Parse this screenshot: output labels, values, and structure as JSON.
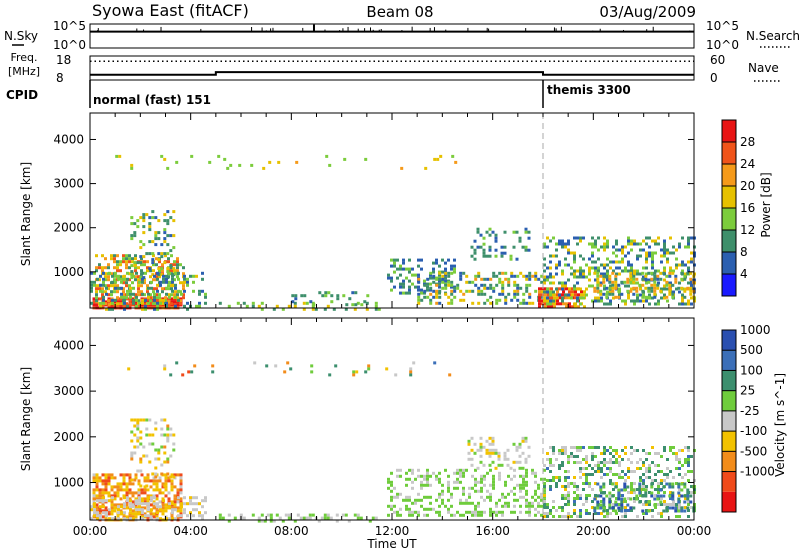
{
  "header": {
    "station": "Syowa East (fitACF)",
    "beam": "Beam 08",
    "date": "03/Aug/2009"
  },
  "noise_panel": {
    "left_label": "N.Sky",
    "right_label": "N.Search",
    "left_ticks": [
      "10^5",
      "10^0"
    ],
    "right_ticks": [
      "10^5",
      "10^0"
    ]
  },
  "freq_panel": {
    "left_label_1": "Freq.",
    "left_label_2": "[MHz]",
    "left_ticks": [
      "18",
      "8"
    ],
    "right_label": "Nave",
    "right_ticks": [
      "60",
      "0"
    ]
  },
  "cpid_panel": {
    "label": "CPID",
    "segments": [
      {
        "name": "normal (fast) 151",
        "start_hr": 0
      },
      {
        "name": "themis 3300",
        "start_hr": 18
      }
    ]
  },
  "power_panel": {
    "ylabel": "Slant Range [km]",
    "yticks": [
      "4000",
      "3000",
      "2000",
      "1000"
    ],
    "colorbar_label": "Power [dB]",
    "colorbar_ticks": [
      "28",
      "24",
      "20",
      "16",
      "12",
      "8",
      "4"
    ],
    "colors": [
      "#1a1aff",
      "#2b5fb0",
      "#3e8f6b",
      "#7ccc3c",
      "#e6c100",
      "#f59a1a",
      "#f0541a",
      "#e81414"
    ]
  },
  "velocity_panel": {
    "ylabel": "Slant Range [km]",
    "yticks": [
      "4000",
      "3000",
      "2000",
      "1000"
    ],
    "colorbar_label": "Velocity [m s^-1]",
    "colorbar_ticks": [
      "1000",
      "500",
      "100",
      "25",
      "-25",
      "-100",
      "-500",
      "-1000"
    ],
    "colors": [
      "#2a4fb0",
      "#3b6fb8",
      "#3c8f6e",
      "#6fcc3c",
      "#c8c8c8",
      "#f2c200",
      "#f28c1a",
      "#f04a1a",
      "#e81414"
    ]
  },
  "time_axis": {
    "label": "Time UT",
    "ticks": [
      "00:00",
      "04:00",
      "08:00",
      "12:00",
      "16:00",
      "20:00",
      "00:00"
    ]
  },
  "chart_data": {
    "type": "heatmap",
    "title": "Syowa East (fitACF) Beam 08 03/Aug/2009",
    "xlabel": "Time UT",
    "ylabel": "Slant Range [km]",
    "xlim_hours": [
      0,
      24
    ],
    "ylim_km": [
      180,
      4600
    ],
    "series": [
      {
        "name": "Power [dB]",
        "clim": [
          0,
          30
        ],
        "regions": [
          {
            "t": [
              0.1,
              3.6
            ],
            "r": [
              180,
              420
            ],
            "v": [
              22,
              30
            ],
            "d": 0.9
          },
          {
            "t": [
              0.2,
              3.7
            ],
            "r": [
              300,
              1400
            ],
            "v": [
              8,
              26
            ],
            "d": 0.5
          },
          {
            "t": [
              1.6,
              3.3
            ],
            "r": [
              900,
              2400
            ],
            "v": [
              6,
              18
            ],
            "d": 0.25
          },
          {
            "t": [
              0.0,
              4.6
            ],
            "r": [
              180,
              1000
            ],
            "v": [
              4,
              16
            ],
            "d": 0.35
          },
          {
            "t": [
              5.0,
              11.5
            ],
            "r": [
              180,
              320
            ],
            "v": [
              8,
              18
            ],
            "d": 0.25
          },
          {
            "t": [
              8.0,
              11.0
            ],
            "r": [
              280,
              560
            ],
            "v": [
              6,
              14
            ],
            "d": 0.2
          },
          {
            "t": [
              11.8,
              14.5
            ],
            "r": [
              500,
              1300
            ],
            "v": [
              4,
              14
            ],
            "d": 0.35
          },
          {
            "t": [
              13.0,
              18.0
            ],
            "r": [
              300,
              1000
            ],
            "v": [
              4,
              20
            ],
            "d": 0.35
          },
          {
            "t": [
              15.0,
              17.5
            ],
            "r": [
              1300,
              2000
            ],
            "v": [
              4,
              12
            ],
            "d": 0.3
          },
          {
            "t": [
              17.8,
              19.6
            ],
            "r": [
              200,
              650
            ],
            "v": [
              16,
              30
            ],
            "d": 0.75
          },
          {
            "t": [
              18.0,
              24.0
            ],
            "r": [
              250,
              1800
            ],
            "v": [
              4,
              18
            ],
            "d": 0.35
          },
          {
            "t": [
              20.0,
              24.0
            ],
            "r": [
              400,
              1000
            ],
            "v": [
              6,
              22
            ],
            "d": 0.4
          },
          {
            "t": [
              1.0,
              14.5
            ],
            "r": [
              3350,
              3650
            ],
            "v": [
              12,
              20
            ],
            "d": 0.04
          }
        ]
      },
      {
        "name": "Velocity [m s^-1]",
        "clim": [
          -1000,
          1000
        ],
        "regions": [
          {
            "t": [
              0.1,
              3.6
            ],
            "r": [
              180,
              1200
            ],
            "v": [
              -700,
              -50
            ],
            "d": 0.65
          },
          {
            "t": [
              1.6,
              3.3
            ],
            "r": [
              900,
              2400
            ],
            "v": [
              -400,
              200
            ],
            "d": 0.25
          },
          {
            "t": [
              0.0,
              4.6
            ],
            "r": [
              180,
              700
            ],
            "v": [
              -200,
              100
            ],
            "d": 0.35
          },
          {
            "t": [
              5.0,
              11.5
            ],
            "r": [
              180,
              320
            ],
            "v": [
              0,
              200
            ],
            "d": 0.3
          },
          {
            "t": [
              11.8,
              18.0
            ],
            "r": [
              300,
              1300
            ],
            "v": [
              0,
              300
            ],
            "d": 0.35
          },
          {
            "t": [
              15.0,
              17.5
            ],
            "r": [
              1300,
              2000
            ],
            "v": [
              -200,
              200
            ],
            "d": 0.3
          },
          {
            "t": [
              18.0,
              24.0
            ],
            "r": [
              250,
              1800
            ],
            "v": [
              -200,
              600
            ],
            "d": 0.35
          },
          {
            "t": [
              20.0,
              24.0
            ],
            "r": [
              400,
              1000
            ],
            "v": [
              200,
              900
            ],
            "d": 0.35
          },
          {
            "t": [
              1.0,
              14.5
            ],
            "r": [
              3350,
              3650
            ],
            "v": [
              -600,
              600
            ],
            "d": 0.04
          }
        ]
      }
    ],
    "noise_sky": {
      "level": 0.72
    },
    "frequency_mhz": [
      {
        "t": [
          0,
          5.0
        ],
        "f": 10.2
      },
      {
        "t": [
          5.0,
          18.0
        ],
        "f": 11.3
      },
      {
        "t": [
          18.0,
          24.0
        ],
        "f": 10.2
      }
    ],
    "nave_level": 0.78,
    "cpid_change_hr": 18
  }
}
